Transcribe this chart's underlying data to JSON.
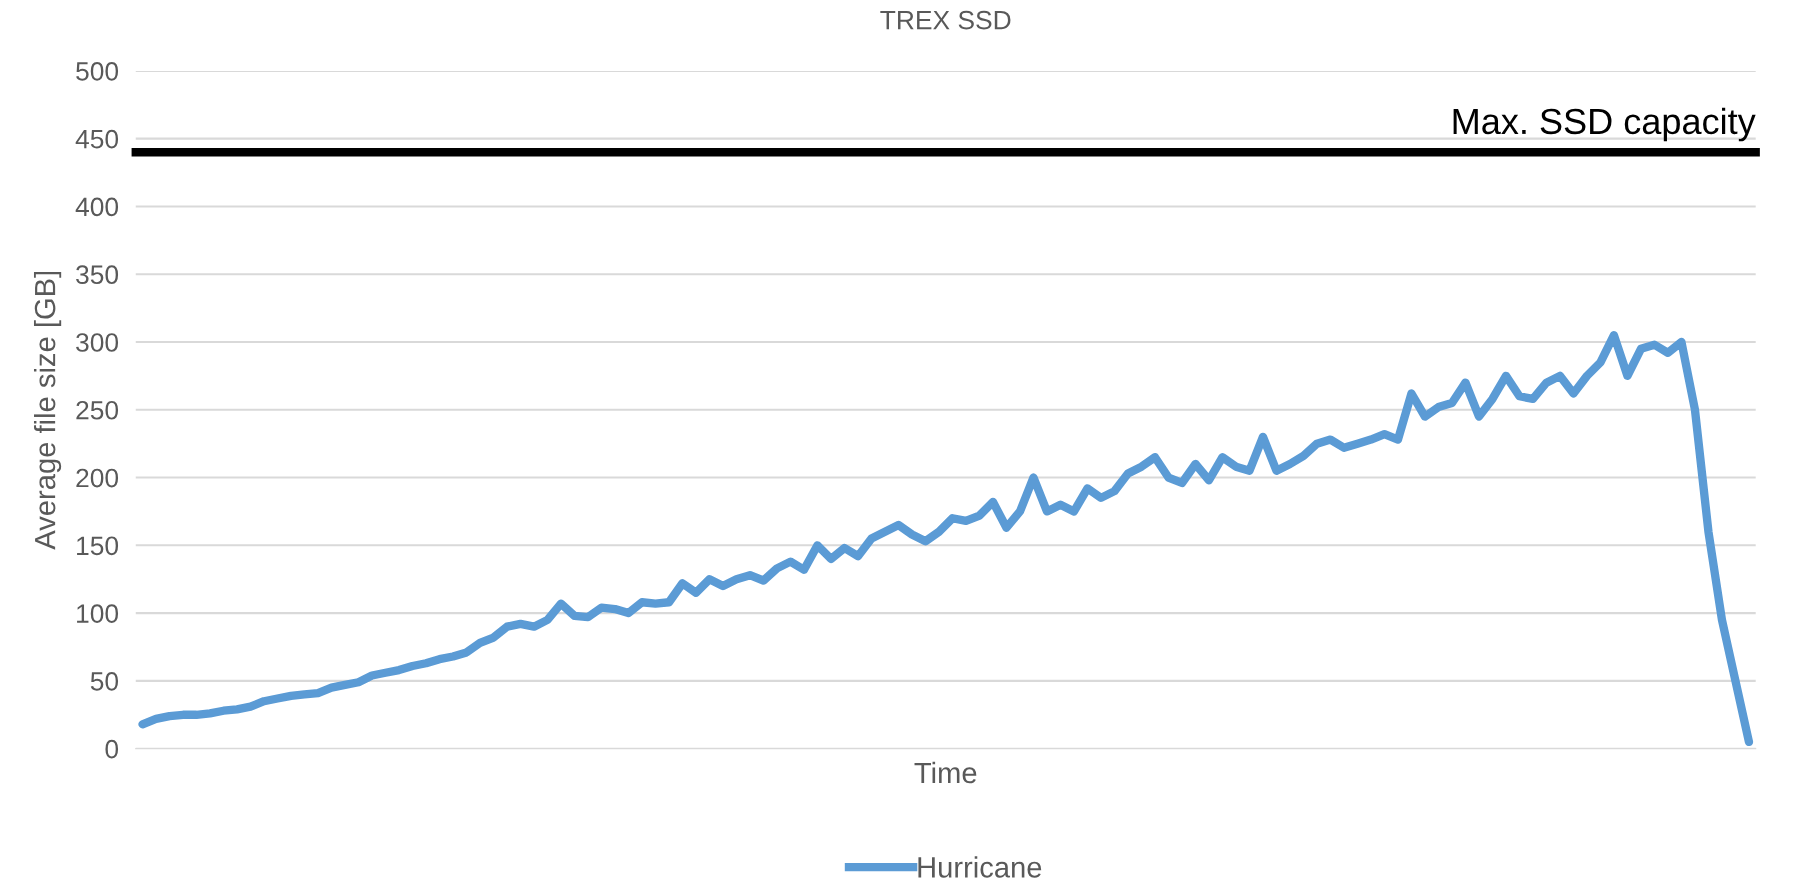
{
  "chart_data": {
    "type": "line",
    "title": "TREX SSD",
    "xlabel": "Time",
    "ylabel": "Average file size [GB]",
    "categories": [
      null,
      null,
      null,
      null,
      null,
      null,
      null,
      null,
      null,
      null,
      null,
      null,
      null,
      null,
      null,
      null,
      null,
      null,
      null,
      null,
      null,
      null,
      null,
      null,
      null,
      null,
      null,
      null,
      null,
      null,
      null,
      null,
      null,
      null,
      null,
      null,
      null,
      null,
      null,
      null,
      null,
      null,
      null,
      null,
      null,
      null,
      null,
      null,
      null,
      null,
      null,
      null,
      null,
      null,
      null,
      null,
      null,
      null,
      null,
      null,
      null,
      null,
      null,
      null,
      null,
      null,
      null,
      null,
      null,
      null,
      null,
      null,
      null,
      null,
      null,
      null,
      null,
      null,
      null,
      null,
      null,
      null,
      null,
      null,
      null,
      null,
      null,
      null,
      null,
      null,
      null,
      null,
      null,
      null,
      null,
      null,
      null,
      null,
      null,
      null,
      null,
      null,
      null,
      null,
      null,
      null,
      null,
      null,
      null,
      null,
      null,
      null,
      null,
      null,
      null,
      null,
      null,
      null,
      null,
      null
    ],
    "series": [
      {
        "name": "Hurricane",
        "color": "#5b9bd5",
        "values": [
          18,
          22,
          24,
          25,
          25,
          26,
          28,
          29,
          31,
          35,
          37,
          39,
          40,
          41,
          45,
          47,
          49,
          54,
          56,
          58,
          61,
          63,
          66,
          68,
          71,
          78,
          82,
          90,
          92,
          90,
          95,
          107,
          98,
          97,
          104,
          103,
          100,
          108,
          107,
          108,
          122,
          115,
          125,
          120,
          125,
          128,
          124,
          133,
          138,
          132,
          150,
          140,
          148,
          142,
          155,
          160,
          165,
          158,
          153,
          160,
          170,
          168,
          172,
          182,
          163,
          175,
          200,
          175,
          180,
          175,
          192,
          185,
          190,
          203,
          208,
          215,
          200,
          196,
          210,
          198,
          215,
          208,
          205,
          230,
          205,
          210,
          216,
          225,
          228,
          222,
          225,
          228,
          232,
          228,
          262,
          245,
          252,
          255,
          270,
          245,
          258,
          275,
          260,
          258,
          270,
          275,
          262,
          275,
          285,
          305,
          275,
          295,
          298,
          292,
          300,
          250,
          160,
          95,
          50,
          5
        ]
      }
    ],
    "ylim": [
      0,
      500
    ],
    "yticks": [
      0,
      50,
      100,
      150,
      200,
      250,
      300,
      350,
      400,
      450,
      500
    ],
    "grid": "y",
    "legend": "bottom",
    "line_style": "solid",
    "marker": "none",
    "ref_lines": [
      {
        "axis": "y",
        "value": 440,
        "label": "Max. SSD capacity",
        "color": "#000000",
        "line_style": "solid"
      }
    ]
  }
}
